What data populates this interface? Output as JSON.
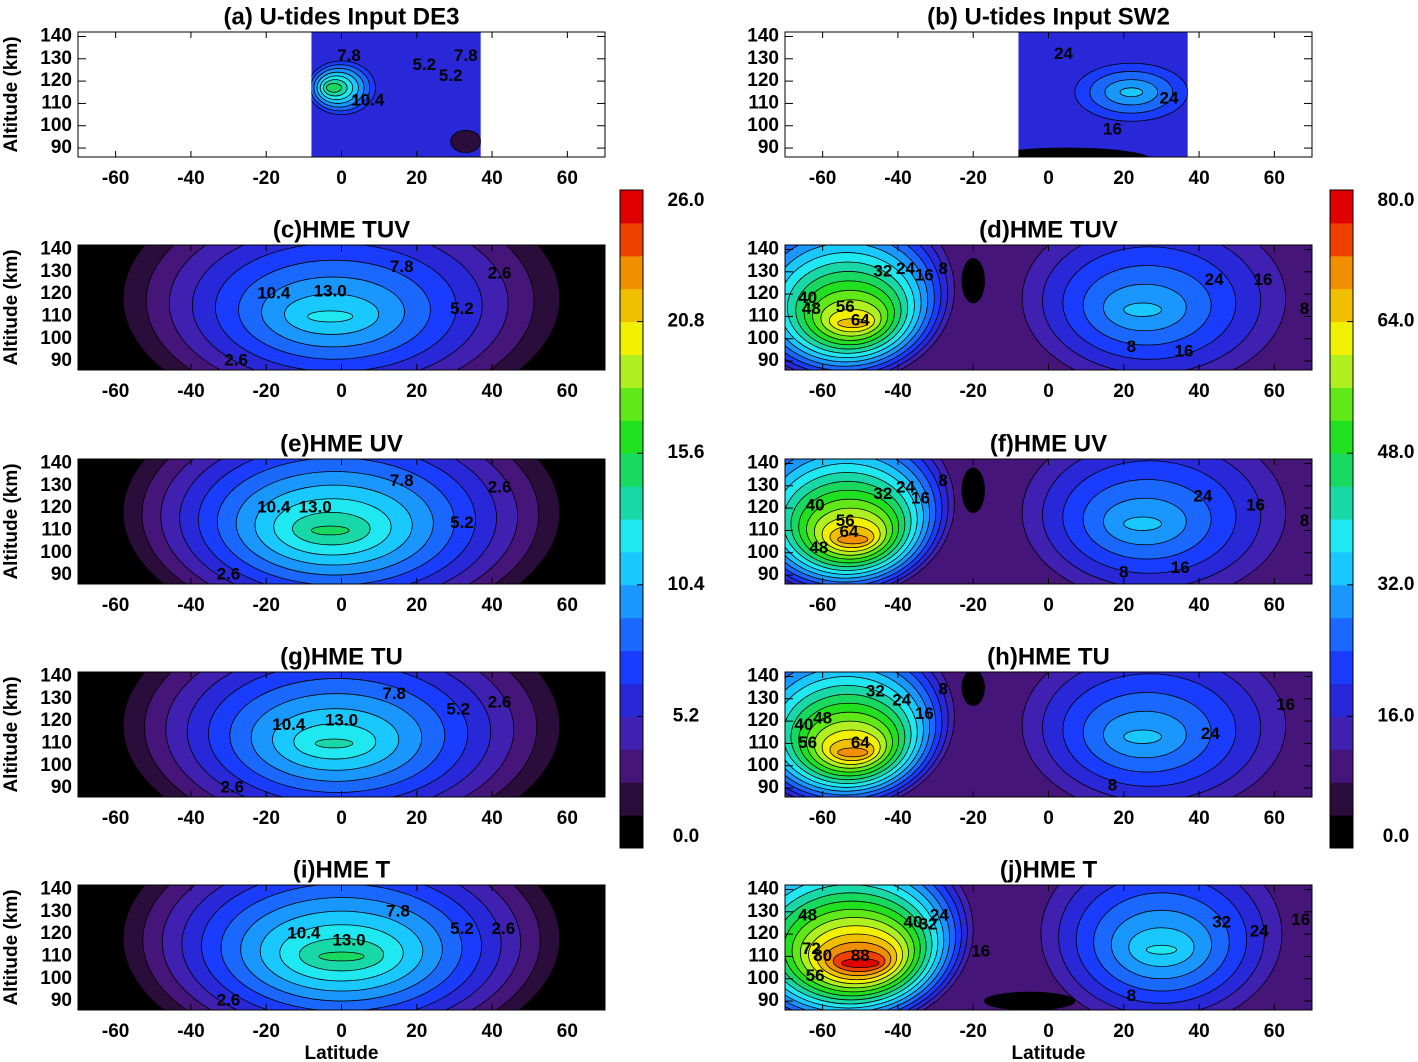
{
  "chart_data": [
    {
      "type": "contour",
      "title": "(a) U-tides Input DE3",
      "ylabel": "Altitude (km)",
      "xlim": [
        -70,
        70
      ],
      "ylim": [
        86,
        142
      ],
      "xticks": [
        -60,
        -40,
        -20,
        0,
        20,
        40,
        60
      ],
      "yticks": [
        90,
        100,
        110,
        120,
        130,
        140
      ],
      "contour_labels": [
        "7.8",
        "10.4",
        "5.2",
        "5.2",
        "7.8"
      ]
    },
    {
      "type": "contour",
      "title": "(b) U-tides Input SW2",
      "xlim": [
        -70,
        70
      ],
      "ylim": [
        86,
        142
      ],
      "xticks": [
        -60,
        -40,
        -20,
        0,
        20,
        40,
        60
      ],
      "yticks": [
        90,
        100,
        110,
        120,
        130,
        140
      ],
      "contour_labels": [
        "24",
        "24",
        "16"
      ]
    },
    {
      "type": "contour",
      "title": "(c)HME TUV",
      "ylabel": "Altitude (km)",
      "xlim": [
        -70,
        70
      ],
      "ylim": [
        86,
        142
      ],
      "xticks": [
        -60,
        -40,
        -20,
        0,
        20,
        40,
        60
      ],
      "yticks": [
        90,
        100,
        110,
        120,
        130,
        140
      ],
      "contour_labels": [
        "10.4",
        "13.0",
        "7.8",
        "5.2",
        "2.6",
        "2.6"
      ]
    },
    {
      "type": "contour",
      "title": "(d)HME TUV",
      "xlim": [
        -70,
        70
      ],
      "ylim": [
        86,
        142
      ],
      "xticks": [
        -60,
        -40,
        -20,
        0,
        20,
        40,
        60
      ],
      "yticks": [
        90,
        100,
        110,
        120,
        130,
        140
      ],
      "contour_labels": [
        "40",
        "48",
        "56",
        "64",
        "32",
        "24",
        "16",
        "8",
        "24",
        "16",
        "8",
        "8",
        "16"
      ]
    },
    {
      "type": "contour",
      "title": "(e)HME UV",
      "ylabel": "Altitude (km)",
      "xlim": [
        -70,
        70
      ],
      "ylim": [
        86,
        142
      ],
      "xticks": [
        -60,
        -40,
        -20,
        0,
        20,
        40,
        60
      ],
      "yticks": [
        90,
        100,
        110,
        120,
        130,
        140
      ],
      "contour_labels": [
        "10.4",
        "13.0",
        "7.8",
        "5.2",
        "2.6",
        "2.6"
      ]
    },
    {
      "type": "contour",
      "title": "(f)HME UV",
      "xlim": [
        -70,
        70
      ],
      "ylim": [
        86,
        142
      ],
      "xticks": [
        -60,
        -40,
        -20,
        0,
        20,
        40,
        60
      ],
      "yticks": [
        90,
        100,
        110,
        120,
        130,
        140
      ],
      "contour_labels": [
        "40",
        "56",
        "64",
        "48",
        "32",
        "24",
        "16",
        "8",
        "24",
        "16",
        "8",
        "8",
        "16"
      ]
    },
    {
      "type": "contour",
      "title": "(g)HME TU",
      "ylabel": "Altitude (km)",
      "xlim": [
        -70,
        70
      ],
      "ylim": [
        86,
        142
      ],
      "xticks": [
        -60,
        -40,
        -20,
        0,
        20,
        40,
        60
      ],
      "yticks": [
        90,
        100,
        110,
        120,
        130,
        140
      ],
      "contour_labels": [
        "7.8",
        "5.2",
        "2.6",
        "10.4",
        "13.0",
        "2.6"
      ]
    },
    {
      "type": "contour",
      "title": "(h)HME TU",
      "xlim": [
        -70,
        70
      ],
      "ylim": [
        86,
        142
      ],
      "xticks": [
        -60,
        -40,
        -20,
        0,
        20,
        40,
        60
      ],
      "yticks": [
        90,
        100,
        110,
        120,
        130,
        140
      ],
      "contour_labels": [
        "40",
        "48",
        "56",
        "64",
        "32",
        "24",
        "16",
        "8",
        "24",
        "16",
        "8"
      ]
    },
    {
      "type": "contour",
      "title": "(i)HME T",
      "ylabel": "Altitude (km)",
      "xlabel": "Latitude",
      "xlim": [
        -70,
        70
      ],
      "ylim": [
        86,
        142
      ],
      "xticks": [
        -60,
        -40,
        -20,
        0,
        20,
        40,
        60
      ],
      "yticks": [
        90,
        100,
        110,
        120,
        130,
        140
      ],
      "contour_labels": [
        "7.8",
        "5.2",
        "2.6",
        "10.4",
        "13.0",
        "2.6"
      ]
    },
    {
      "type": "contour",
      "title": "(j)HME T",
      "xlabel": "Latitude",
      "xlim": [
        -70,
        70
      ],
      "ylim": [
        86,
        142
      ],
      "xticks": [
        -60,
        -40,
        -20,
        0,
        20,
        40,
        60
      ],
      "yticks": [
        90,
        100,
        110,
        120,
        130,
        140
      ],
      "contour_labels": [
        "48",
        "72",
        "80",
        "88",
        "56",
        "40",
        "32",
        "24",
        "16",
        "8",
        "32",
        "24",
        "16"
      ]
    }
  ],
  "colorbars": [
    {
      "type": "colorbar",
      "ylim": [
        0,
        26
      ],
      "yticks": [
        {
          "value": 0,
          "label": "0.0"
        },
        5.2,
        10.4,
        15.6,
        20.8,
        {
          "value": 26,
          "label": "26.0"
        }
      ]
    },
    {
      "type": "colorbar",
      "ylim": [
        0,
        80
      ],
      "yticks": [
        {
          "value": 0,
          "label": "0.0"
        },
        {
          "value": 16,
          "label": "16.0"
        },
        {
          "value": 32,
          "label": "32.0"
        },
        {
          "value": 48,
          "label": "48.0"
        },
        {
          "value": 64,
          "label": "64.0"
        },
        {
          "value": 80,
          "label": "80.0"
        }
      ]
    }
  ]
}
